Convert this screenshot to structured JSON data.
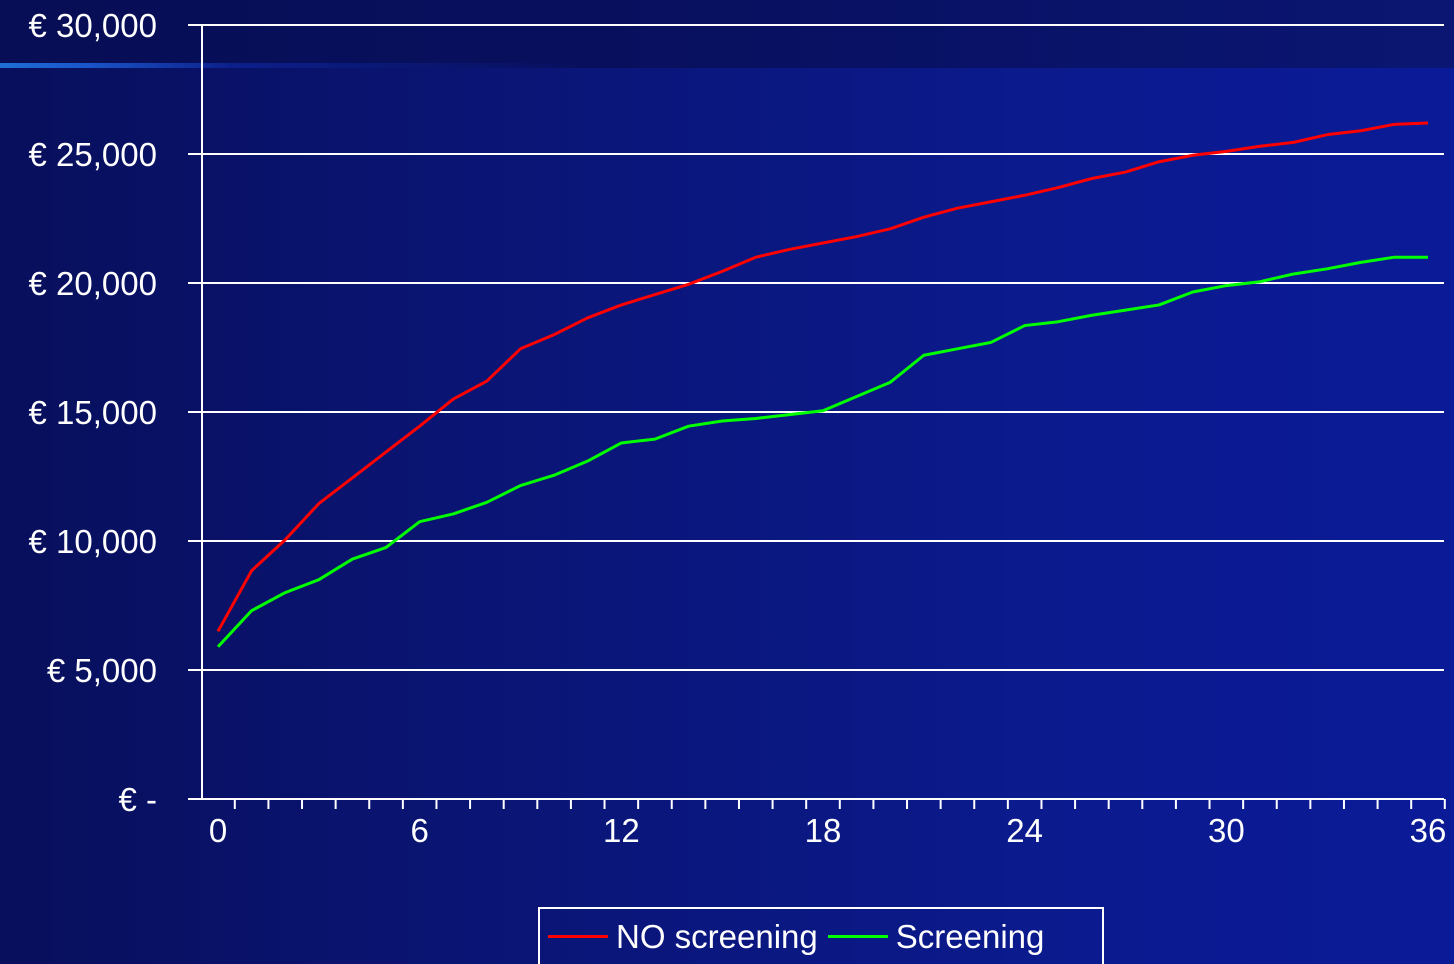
{
  "chart_data": {
    "type": "line",
    "title": "",
    "xlabel": "",
    "ylabel": "",
    "x": [
      0,
      1,
      2,
      3,
      4,
      5,
      6,
      7,
      8,
      9,
      10,
      11,
      12,
      13,
      14,
      15,
      16,
      17,
      18,
      19,
      20,
      21,
      22,
      23,
      24,
      25,
      26,
      27,
      28,
      29,
      30,
      31,
      32,
      33,
      34,
      35,
      36
    ],
    "xticks": [
      0,
      6,
      12,
      18,
      24,
      30,
      36
    ],
    "xtick_labels": [
      "0",
      "6",
      "12",
      "18",
      "24",
      "30",
      "36"
    ],
    "xlim": [
      0,
      36
    ],
    "ylim": [
      0,
      30000
    ],
    "yticks": [
      0,
      5000,
      10000,
      15000,
      20000,
      25000,
      30000
    ],
    "ytick_labels": [
      "€ -",
      "€ 5,000",
      "€ 10,000",
      "€ 15,000",
      "€ 20,000",
      "€ 25,000",
      "€ 30,000"
    ],
    "grid": "horizontal",
    "legend_position": "bottom-center",
    "series": [
      {
        "name": "NO screening",
        "color": "#ff0000",
        "values": [
          6500,
          8850,
          10050,
          11450,
          12450,
          13450,
          14450,
          15500,
          16200,
          17450,
          18000,
          18650,
          19150,
          19550,
          19950,
          20450,
          21000,
          21300,
          21550,
          21800,
          22100,
          22550,
          22900,
          23150,
          23400,
          23700,
          24050,
          24300,
          24700,
          24950,
          25100,
          25300,
          25450,
          25750,
          25900,
          26150,
          26200
        ]
      },
      {
        "name": "Screening",
        "color": "#00ff00",
        "values": [
          5900,
          7300,
          8000,
          8500,
          9300,
          9750,
          10750,
          11050,
          11500,
          12150,
          12550,
          13100,
          13800,
          13950,
          14450,
          14650,
          14750,
          14900,
          15050,
          15600,
          16150,
          17200,
          17450,
          17700,
          18350,
          18500,
          18750,
          18950,
          19150,
          19650,
          19900,
          20050,
          20350,
          20550,
          20800,
          21000,
          21000
        ]
      }
    ]
  }
}
